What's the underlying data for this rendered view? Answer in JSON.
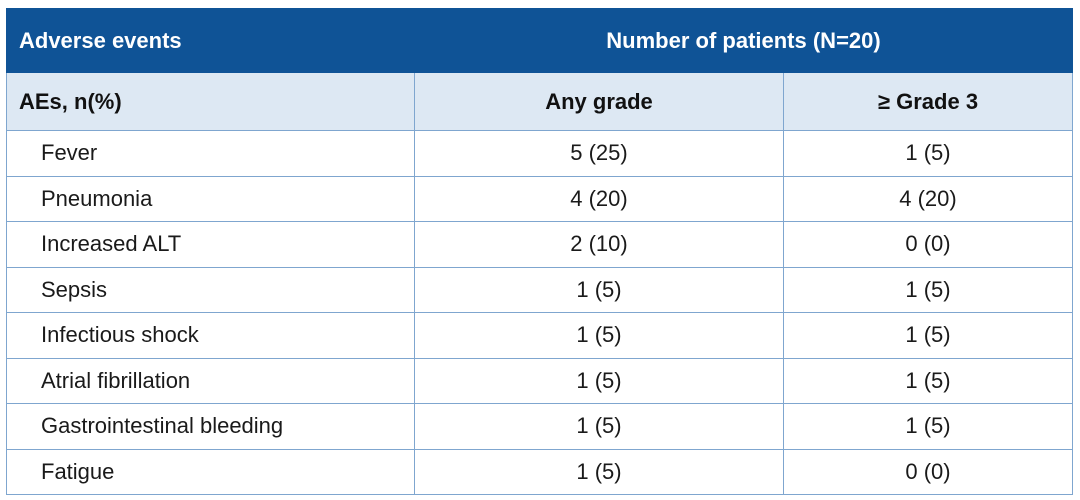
{
  "header": {
    "adverse_events": "Adverse events",
    "patients": "Number of patients (N=20)"
  },
  "subheader": {
    "aes": "AEs, n(%)",
    "any_grade": "Any grade",
    "grade3": "≥ Grade 3"
  },
  "rows": [
    {
      "event": "Fever",
      "any": "5 (25)",
      "g3": "1 (5)"
    },
    {
      "event": "Pneumonia",
      "any": "4 (20)",
      "g3": "4 (20)"
    },
    {
      "event": "Increased ALT",
      "any": "2 (10)",
      "g3": "0 (0)"
    },
    {
      "event": "Sepsis",
      "any": "1 (5)",
      "g3": "1 (5)"
    },
    {
      "event": "Infectious shock",
      "any": "1 (5)",
      "g3": "1 (5)"
    },
    {
      "event": "Atrial fibrillation",
      "any": "1 (5)",
      "g3": "1 (5)"
    },
    {
      "event": "Gastrointestinal bleeding",
      "any": "1 (5)",
      "g3": "1 (5)"
    },
    {
      "event": "Fatigue",
      "any": "1 (5)",
      "g3": "0 (0)"
    }
  ],
  "colors": {
    "header_bg": "#0f5396",
    "subheader_bg": "#dde8f3",
    "border": "#7fa6cf"
  }
}
